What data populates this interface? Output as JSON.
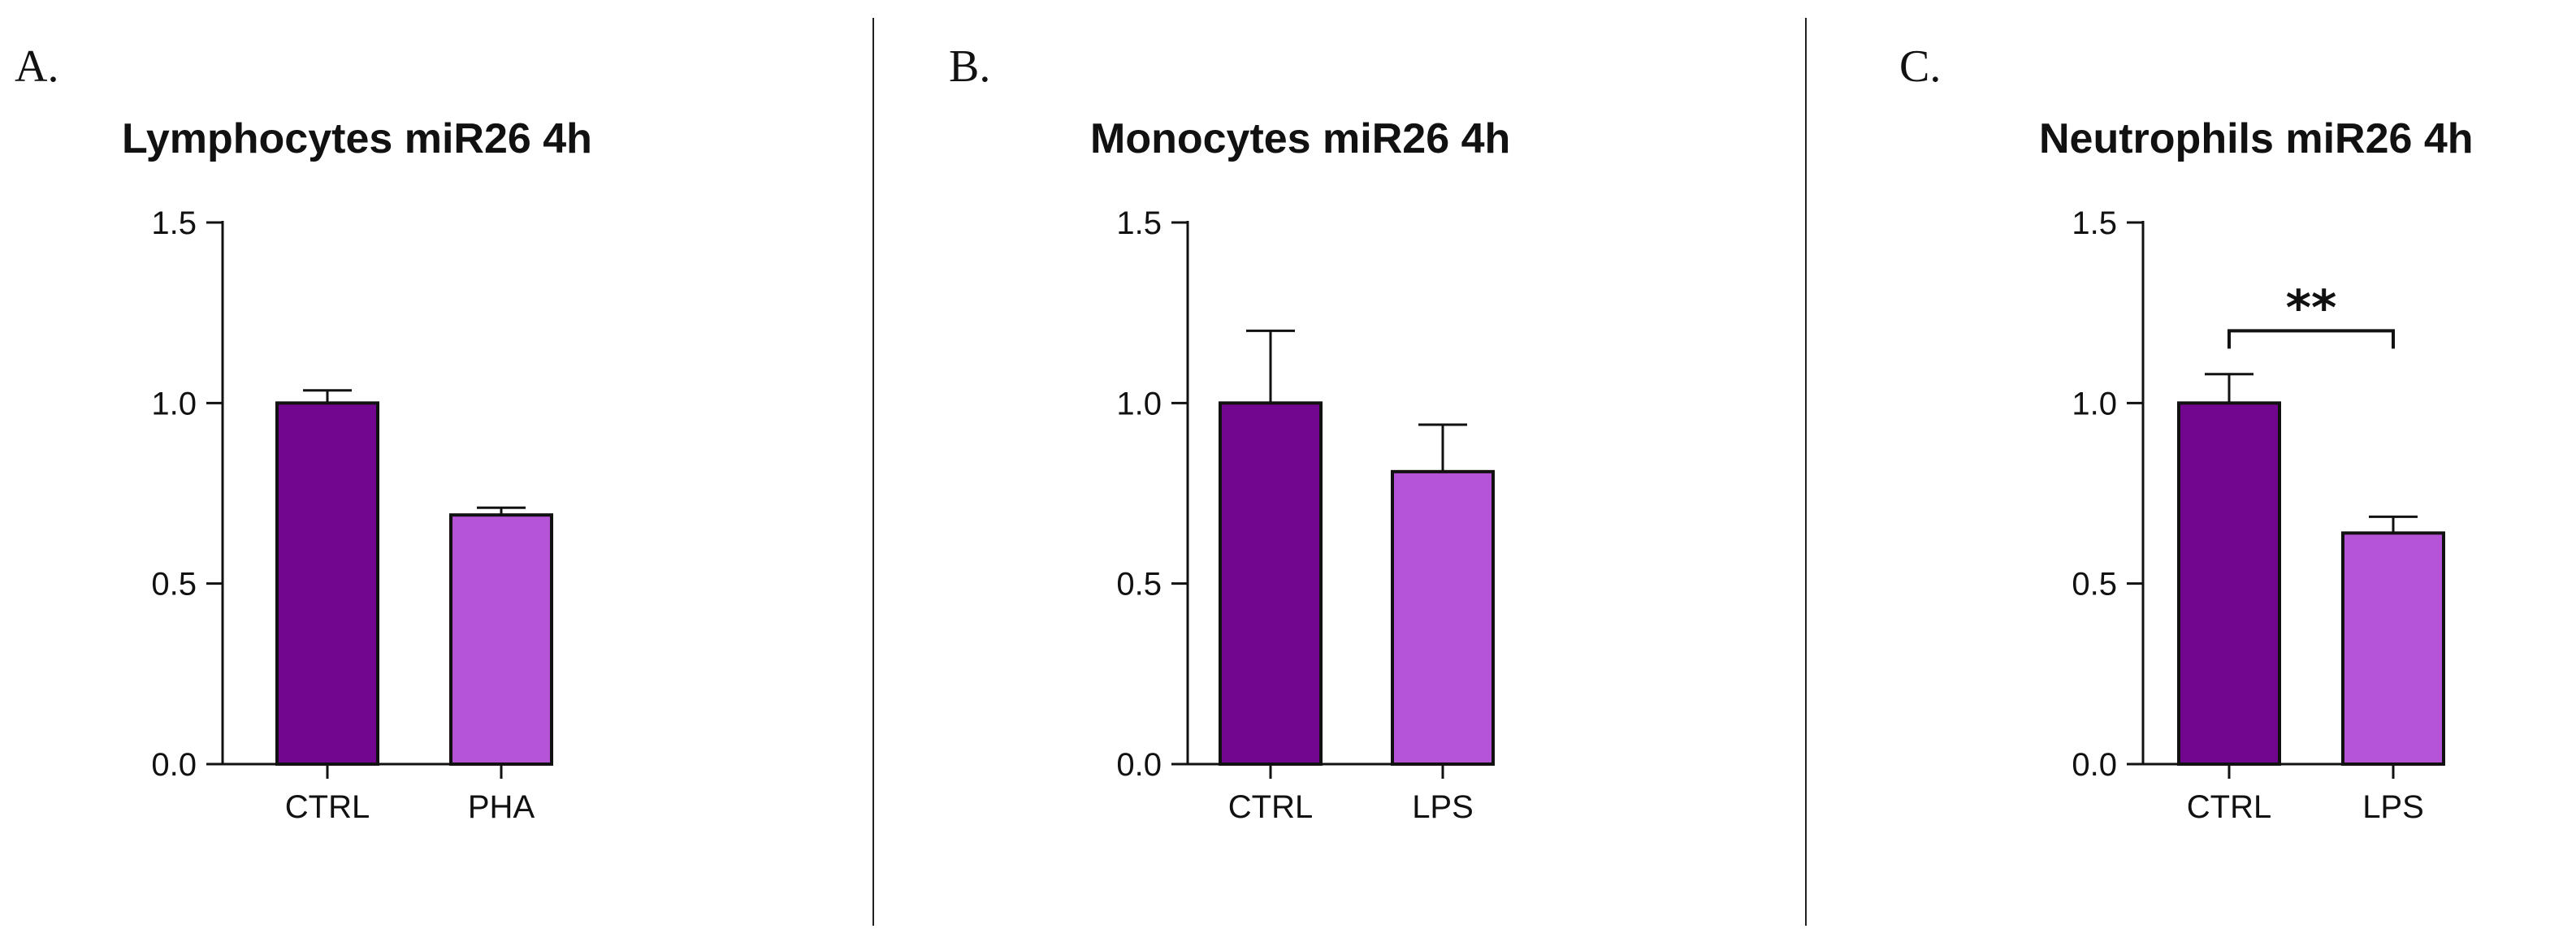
{
  "chart_data": [
    {
      "type": "bar",
      "panel_label": "A.",
      "title": "Lymphocytes miR26 4h",
      "categories": [
        "CTRL",
        "PHA"
      ],
      "values": [
        1.0,
        0.69
      ],
      "errors": [
        0.035,
        0.02
      ],
      "colors": [
        "#72068f",
        "#b554d6"
      ],
      "ylim": [
        0,
        1.5
      ],
      "yticks": [
        0.0,
        0.5,
        1.0,
        1.5
      ],
      "ytick_labels": [
        "0.0",
        "0.5",
        "1.0",
        "1.5"
      ],
      "xlabel": "",
      "ylabel": "",
      "grid": false
    },
    {
      "type": "bar",
      "panel_label": "B.",
      "title": "Monocytes miR26 4h",
      "categories": [
        "CTRL",
        "LPS"
      ],
      "values": [
        1.0,
        0.81
      ],
      "errors": [
        0.2,
        0.13
      ],
      "colors": [
        "#72068f",
        "#b554d6"
      ],
      "ylim": [
        0,
        1.5
      ],
      "yticks": [
        0.0,
        0.5,
        1.0,
        1.5
      ],
      "ytick_labels": [
        "0.0",
        "0.5",
        "1.0",
        "1.5"
      ],
      "xlabel": "",
      "ylabel": "",
      "grid": false
    },
    {
      "type": "bar",
      "panel_label": "C.",
      "title": "Neutrophils miR26 4h",
      "categories": [
        "CTRL",
        "LPS"
      ],
      "values": [
        1.0,
        0.64
      ],
      "errors": [
        0.08,
        0.045
      ],
      "colors": [
        "#72068f",
        "#b554d6"
      ],
      "ylim": [
        0,
        1.5
      ],
      "yticks": [
        0.0,
        0.5,
        1.0,
        1.5
      ],
      "ytick_labels": [
        "0.0",
        "0.5",
        "1.0",
        "1.5"
      ],
      "xlabel": "",
      "ylabel": "",
      "grid": false,
      "significance": {
        "between": [
          "CTRL",
          "LPS"
        ],
        "label": "**",
        "level": 1.2
      }
    }
  ]
}
